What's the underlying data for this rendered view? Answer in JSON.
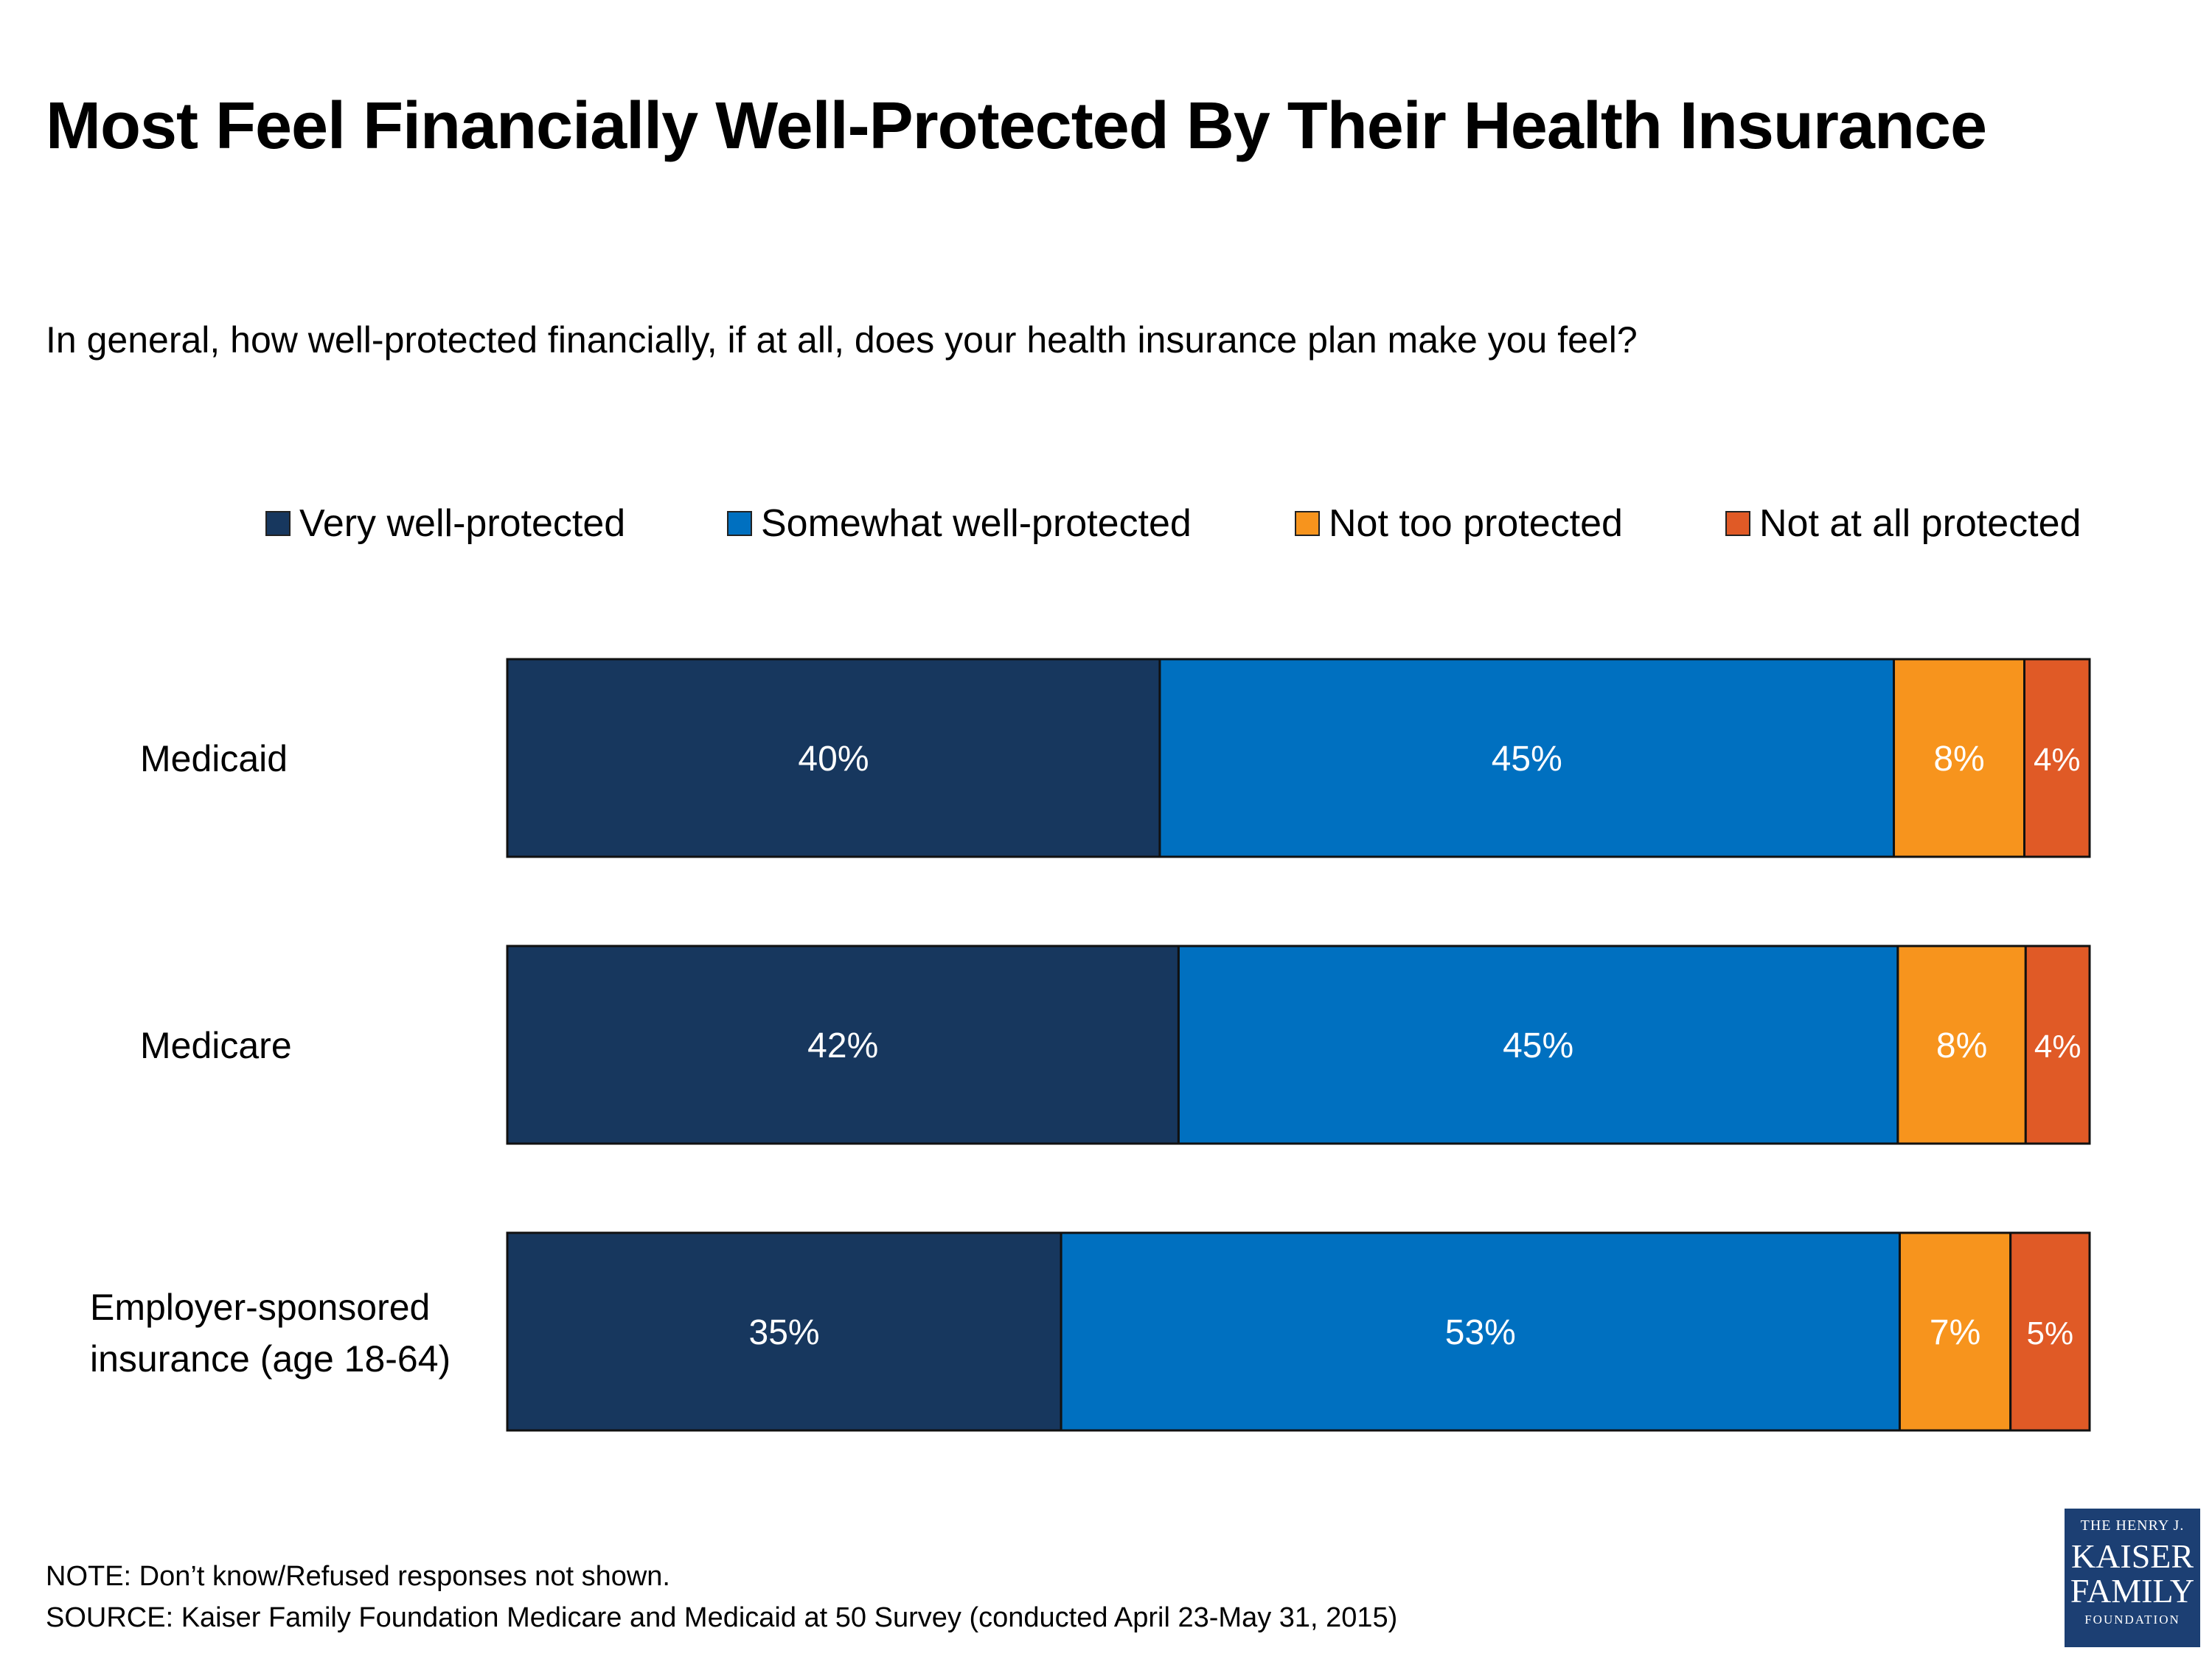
{
  "title": "Most Feel Financially Well-Protected By Their Health Insurance",
  "subtitle": "In general, how well-protected financially, if at all, does your health insurance plan make you feel?",
  "colors": {
    "very": "#17375e",
    "somewhat": "#0070c0",
    "not_too": "#f7941d",
    "not_at_all": "#e05a26"
  },
  "chart_data": {
    "type": "bar",
    "orientation": "horizontal",
    "stacked": true,
    "categories": [
      "Medicaid",
      "Medicare",
      "Employer-sponsored insurance (age 18-64)"
    ],
    "series": [
      {
        "name": "Very well-protected",
        "values": [
          40,
          42,
          35
        ],
        "labels": [
          "40%",
          "42%",
          "35%"
        ],
        "color": "#17375e"
      },
      {
        "name": "Somewhat well-protected",
        "values": [
          45,
          45,
          53
        ],
        "labels": [
          "45%",
          "45%",
          "53%"
        ],
        "color": "#0070c0"
      },
      {
        "name": "Not too protected",
        "values": [
          8,
          8,
          7
        ],
        "labels": [
          "8%",
          "8%",
          "7%"
        ],
        "color": "#f7941d"
      },
      {
        "name": "Not at all protected",
        "values": [
          4,
          4,
          5
        ],
        "labels": [
          "4%",
          "4%",
          "5%"
        ],
        "color": "#e05a26"
      }
    ],
    "legend_position": "top",
    "grid": false
  },
  "footnotes": {
    "note": "NOTE: Don’t know/Refused responses not shown.",
    "source": "SOURCE: Kaiser Family Foundation Medicare and Medicaid at 50 Survey (conducted April 23-May 31, 2015)"
  },
  "logo": {
    "line1": "THE HENRY J.",
    "line2": "KAISER",
    "line3": "FAMILY",
    "line4": "FOUNDATION"
  }
}
